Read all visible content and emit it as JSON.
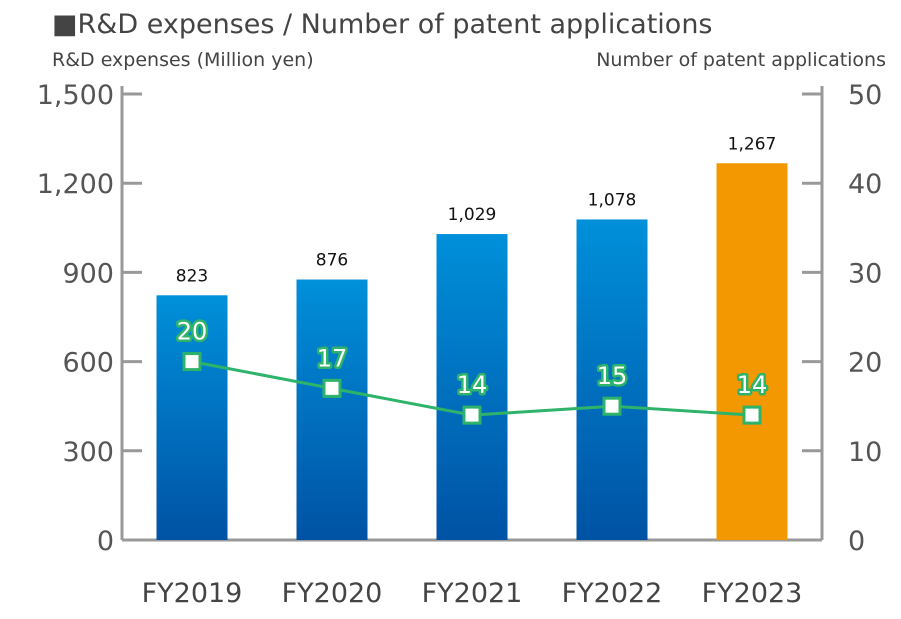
{
  "chart_data": {
    "type": "bar+line",
    "title": "■R&D expenses / Number of patent applications",
    "ylabel_left": "R&D expenses (Million yen)",
    "ylabel_right": "Number of patent applications",
    "categories": [
      "FY2019",
      "FY2020",
      "FY2021",
      "FY2022",
      "FY2023"
    ],
    "ylim_left": [
      0,
      1500
    ],
    "yticks_left": [
      "0",
      "300",
      "600",
      "900",
      "1,200",
      "1,500"
    ],
    "ylim_right": [
      0,
      50
    ],
    "yticks_right": [
      "0",
      "10",
      "20",
      "30",
      "40",
      "50"
    ],
    "series": [
      {
        "type": "bar",
        "axis": "left",
        "values": [
          823,
          876,
          1029,
          1078,
          1267
        ],
        "labels": [
          "823",
          "876",
          "1,029",
          "1,078",
          "1,267"
        ]
      },
      {
        "type": "line",
        "axis": "right",
        "values": [
          20,
          17,
          14,
          15,
          14
        ],
        "labels": [
          "20",
          "17",
          "14",
          "15",
          "14"
        ]
      }
    ],
    "colors": {
      "bar": "#0a6fc2",
      "bar_highlight": "#f39800",
      "line": "#2db36a",
      "axis": "#999999"
    },
    "grid": false
  }
}
